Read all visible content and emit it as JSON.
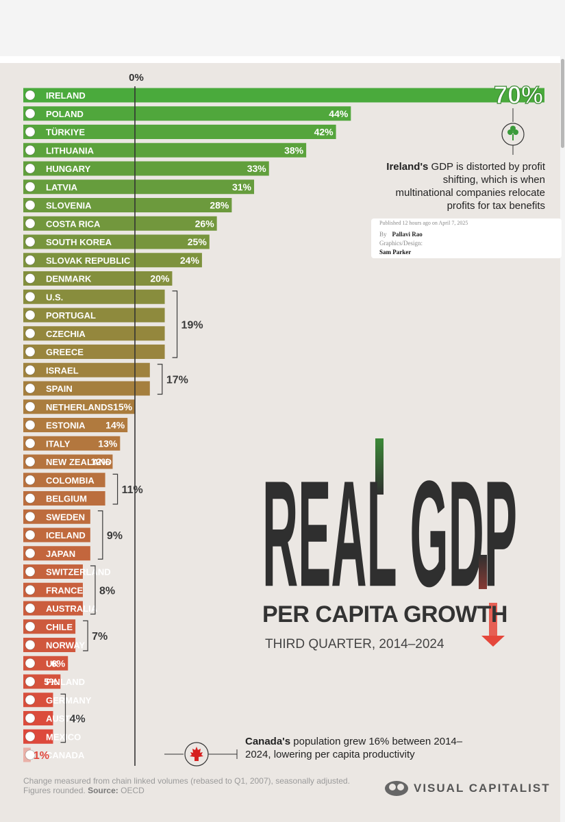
{
  "chart_data": {
    "type": "bar",
    "orientation": "horizontal",
    "title": "REAL GDP",
    "subtitle": "PER CAPITA GROWTH",
    "period": "THIRD QUARTER, 2014–2024",
    "zero_label": "0%",
    "categories": [
      "IRELAND",
      "POLAND",
      "TÜRKIYE",
      "LITHUANIA",
      "HUNGARY",
      "LATVIA",
      "SLOVENIA",
      "COSTA RICA",
      "SOUTH KOREA",
      "SLOVAK REPUBLIC",
      "DENMARK",
      "U.S.",
      "PORTUGAL",
      "CZECHIA",
      "GREECE",
      "ISRAEL",
      "SPAIN",
      "NETHERLANDS",
      "ESTONIA",
      "ITALY",
      "NEW ZEALAND",
      "COLOMBIA",
      "BELGIUM",
      "SWEDEN",
      "ICELAND",
      "JAPAN",
      "SWITZERLAND",
      "FRANCE",
      "AUSTRALIA",
      "CHILE",
      "NORWAY",
      "UK",
      "FINLAND",
      "GERMANY",
      "AUSTRIA",
      "MEXICO",
      "CANADA"
    ],
    "values": [
      70,
      44,
      42,
      38,
      33,
      31,
      28,
      26,
      25,
      24,
      20,
      19,
      19,
      19,
      19,
      17,
      17,
      15,
      14,
      13,
      12,
      11,
      11,
      9,
      9,
      9,
      8,
      8,
      8,
      7,
      7,
      6,
      5,
      4,
      4,
      4,
      1
    ],
    "value_labels": [
      "70%",
      "44%",
      "42%",
      "38%",
      "33%",
      "31%",
      "28%",
      "26%",
      "25%",
      "24%",
      "20%",
      "",
      "",
      "",
      "",
      "",
      "",
      "15%",
      "14%",
      "13%",
      "12%",
      "",
      "",
      "",
      "",
      "",
      "",
      "",
      "",
      "",
      "",
      "6%",
      "5%",
      "",
      "",
      "",
      "1%"
    ],
    "groups": [
      {
        "label": "19%",
        "from": 11,
        "to": 14
      },
      {
        "label": "17%",
        "from": 15,
        "to": 16
      },
      {
        "label": "11%",
        "from": 21,
        "to": 22
      },
      {
        "label": "9%",
        "from": 23,
        "to": 25
      },
      {
        "label": "8%",
        "from": 26,
        "to": 28
      },
      {
        "label": "7%",
        "from": 29,
        "to": 30
      },
      {
        "label": "4%",
        "from": 33,
        "to": 35
      }
    ],
    "xlim": [
      0,
      70
    ],
    "colors": {
      "top": "#4aaa3c",
      "mid": "#b07a3e",
      "bottom": "#e0463c",
      "highlight": "#eab1a8"
    },
    "source": "OECD"
  },
  "annotations": {
    "ireland_bold": "Ireland's",
    "ireland_rest": " GDP is distorted by profit shifting, which is when multinational companies relocate profits for tax benefits",
    "canada_bold": "Canada's",
    "canada_rest": " population grew 16% between 2014–2024, lowering per capita productivity"
  },
  "byline": {
    "published": "Published 12 hours ago on April 7, 2025",
    "by_label": "By",
    "author": "Pallavi Rao",
    "graphics_label": "Graphics/Design:",
    "designer": "Sam Parker"
  },
  "footer": {
    "note": "Change measured from chain linked volumes (rebased to Q1, 2007), seasonally adjusted. Figures rounded.",
    "source_label": "Source:",
    "source": "OECD",
    "brand": "VISUAL CAPITALIST"
  }
}
